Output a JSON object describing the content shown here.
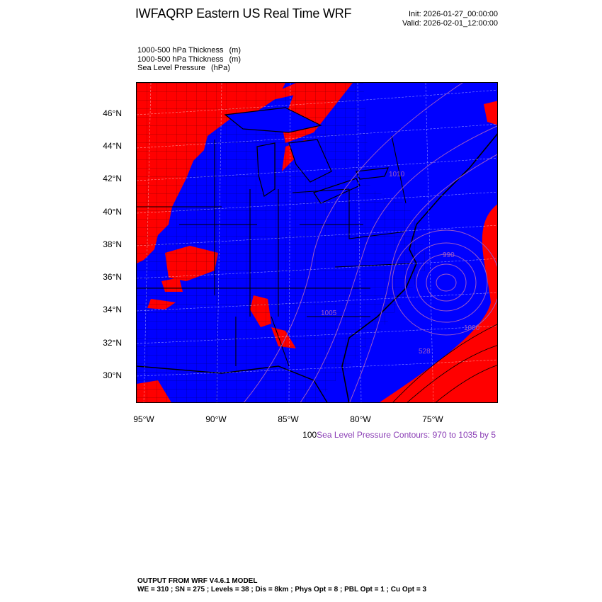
{
  "header": {
    "title": "IWFAQRP Eastern US Real Time WRF",
    "init": "Init: 2026-01-27_00:00:00",
    "valid": "Valid: 2026-02-01_12:00:00"
  },
  "fields": [
    {
      "name": "1000-500 hPa Thickness",
      "unit": "(m)"
    },
    {
      "name": "1000-500 hPa Thickness",
      "unit": "(m)"
    },
    {
      "name": "Sea Level Pressure",
      "unit": "(hPa)"
    }
  ],
  "map": {
    "lat_labels": [
      "46°N",
      "44°N",
      "42°N",
      "40°N",
      "38°N",
      "36°N",
      "34°N",
      "32°N",
      "30°N"
    ],
    "lon_labels": [
      "95°W",
      "90°W",
      "85°W",
      "80°W",
      "75°W"
    ],
    "colors": {
      "warm": "#ff0000",
      "cold": "#0000ff",
      "contour": "#9b59c6",
      "border": "#000000"
    },
    "contour_labels": [
      "990",
      "1010",
      "528",
      "1000",
      "1005"
    ]
  },
  "contour_info": {
    "number": "100",
    "text": "Sea Level Pressure Contours: 970 to 1035 by 5"
  },
  "footer": {
    "line1": "OUTPUT FROM WRF V4.6.1 MODEL",
    "line2": "WE = 310 ; SN = 275 ; Levels = 38 ; Dis = 8km ; Phys Opt = 8 ; PBL Opt = 1 ; Cu Opt = 3"
  }
}
